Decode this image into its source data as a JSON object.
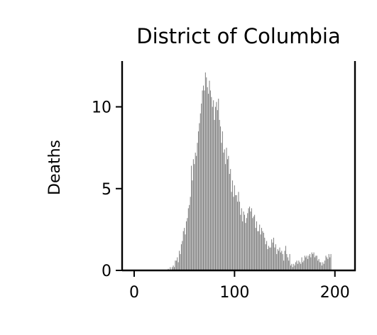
{
  "chart_data": {
    "type": "bar",
    "title": "District of Columbia",
    "ylabel": "Deaths",
    "xlabel": "",
    "xlim": [
      -12,
      220
    ],
    "ylim": [
      0,
      12.8
    ],
    "xticks": [
      0,
      100,
      200
    ],
    "yticks": [
      0,
      5,
      10
    ],
    "grid": false,
    "bar_color": "#808080",
    "x_start": 0,
    "values": [
      0,
      0,
      0,
      0,
      0,
      0,
      0,
      0,
      0,
      0,
      0,
      0,
      0,
      0,
      0,
      0,
      0,
      0,
      0,
      0,
      0,
      0,
      0,
      0,
      0,
      0,
      0,
      0,
      0,
      0,
      0,
      0,
      0,
      0,
      0.1,
      0,
      0.2,
      0,
      0.2,
      0.3,
      0.2,
      0.6,
      0.6,
      0.8,
      0.5,
      1.2,
      1.0,
      1.6,
      1.8,
      2.4,
      2.6,
      2.2,
      3.0,
      3.2,
      3.8,
      4.0,
      4.5,
      6.4,
      5.5,
      6.8,
      6.5,
      7.2,
      7.0,
      7.8,
      8.5,
      9.0,
      9.6,
      10.2,
      11.0,
      11.3,
      11.0,
      12.1,
      11.8,
      11.2,
      10.8,
      11.6,
      11.0,
      10.6,
      10.0,
      10.4,
      9.2,
      10.0,
      10.3,
      9.8,
      10.5,
      9.2,
      8.8,
      7.8,
      8.5,
      7.2,
      7.4,
      6.5,
      7.5,
      6.8,
      7.0,
      5.9,
      6.2,
      4.8,
      5.5,
      4.5,
      5.2,
      4.6,
      4.6,
      4.2,
      4.8,
      4.2,
      3.4,
      3.8,
      3.0,
      3.6,
      3.4,
      2.9,
      3.2,
      3.5,
      3.8,
      3.9,
      3.6,
      3.8,
      3.2,
      3.3,
      3.4,
      2.6,
      3.0,
      2.4,
      2.4,
      2.8,
      2.2,
      2.6,
      2.4,
      2.3,
      2.0,
      1.6,
      1.8,
      1.3,
      1.5,
      1.4,
      1.4,
      1.9,
      1.7,
      2.0,
      1.4,
      1.6,
      1.0,
      1.3,
      1.2,
      1.4,
      1.1,
      1.2,
      1.0,
      0.6,
      1.2,
      1.5,
      1.0,
      0.8,
      0.6,
      1.0,
      0.3,
      0.4,
      0.2,
      0.4,
      0.3,
      0.5,
      0.6,
      0.4,
      0.6,
      0.5,
      0.4,
      0.8,
      0.5,
      0.6,
      0.9,
      0.8,
      0.9,
      0.7,
      0.9,
      1.0,
      0.8,
      1.1,
      1.0,
      1.1,
      0.8,
      0.9,
      0.9,
      0.6,
      0.7,
      0.5,
      0.5,
      0.3,
      0.5,
      0.4,
      0.6,
      0.9,
      0.8,
      0.7,
      1.0,
      0.8,
      1.0
    ]
  }
}
